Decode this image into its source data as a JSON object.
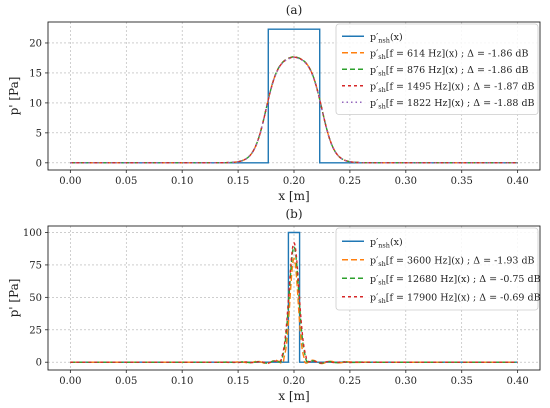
{
  "chart_data": [
    {
      "type": "line",
      "panel_label": "(a)",
      "xlabel": "x [m]",
      "ylabel": "p' [Pa]",
      "xlim": [
        -0.02,
        0.42
      ],
      "ylim": [
        -1.2,
        23.5
      ],
      "xticks": [
        "0.00",
        "0.05",
        "0.10",
        "0.15",
        "0.20",
        "0.25",
        "0.30",
        "0.35",
        "0.40"
      ],
      "yticks": [
        "0",
        "5",
        "10",
        "15",
        "20"
      ],
      "grid": true,
      "legend_position": "top-right",
      "series": [
        {
          "name": "p'nsh(x)",
          "label_base": "p′",
          "label_sub": "nsh",
          "label_rest": "(x)",
          "color": "#1f77b4",
          "dash": "",
          "kind": "rect",
          "x0": 0.177,
          "x1": 0.223,
          "peak": 22.3
        },
        {
          "name": "p'sh[f = 614 Hz](x) ; Δ = -1.86 dB",
          "label_base": "p′",
          "label_sub": "sh",
          "label_rest": "[f = 614 Hz](x) ; Δ = -1.86 dB",
          "color": "#ff7f0e",
          "dash": "6,3",
          "kind": "smooth",
          "center": 0.2,
          "half_width": 0.025,
          "edge_width": 0.0055,
          "peak": 17.9
        },
        {
          "name": "p'sh[f = 876 Hz](x) ; Δ = -1.86 dB",
          "label_base": "p′",
          "label_sub": "sh",
          "label_rest": "[f = 876 Hz](x) ; Δ = -1.86 dB",
          "color": "#2ca02c",
          "dash": "5,3",
          "kind": "smooth",
          "center": 0.2,
          "half_width": 0.025,
          "edge_width": 0.0055,
          "peak": 17.9
        },
        {
          "name": "p'sh[f = 1495 Hz](x) ; Δ = -1.87 dB",
          "label_base": "p′",
          "label_sub": "sh",
          "label_rest": "[f = 1495 Hz](x) ; Δ = -1.87 dB",
          "color": "#d62728",
          "dash": "3,3",
          "kind": "smooth",
          "center": 0.2,
          "half_width": 0.025,
          "edge_width": 0.0055,
          "peak": 17.85
        },
        {
          "name": "p'sh[f = 1822 Hz](x) ; Δ = -1.88 dB",
          "label_base": "p′",
          "label_sub": "sh",
          "label_rest": "[f = 1822 Hz](x) ; Δ = -1.88 dB",
          "color": "#9467bd",
          "dash": "1.5,3",
          "kind": "smooth",
          "center": 0.2,
          "half_width": 0.025,
          "edge_width": 0.0055,
          "peak": 17.8
        }
      ]
    },
    {
      "type": "line",
      "panel_label": "(b)",
      "xlabel": "x [m]",
      "ylabel": "p' [Pa]",
      "xlim": [
        -0.02,
        0.42
      ],
      "ylim": [
        -6,
        105
      ],
      "xticks": [
        "0.00",
        "0.05",
        "0.10",
        "0.15",
        "0.20",
        "0.25",
        "0.30",
        "0.35",
        "0.40"
      ],
      "yticks": [
        "0",
        "25",
        "50",
        "75",
        "100"
      ],
      "grid": true,
      "legend_position": "top-right",
      "series": [
        {
          "name": "p'nsh(x)",
          "label_base": "p′",
          "label_sub": "nsh",
          "label_rest": "(x)",
          "color": "#1f77b4",
          "dash": "",
          "kind": "rect",
          "x0": 0.195,
          "x1": 0.205,
          "peak": 100
        },
        {
          "name": "p'sh[f = 3600 Hz](x) ; Δ = -1.93 dB",
          "label_base": "p′",
          "label_sub": "sh",
          "label_rest": "[f = 3600 Hz](x) ; Δ = -1.93 dB",
          "color": "#ff7f0e",
          "dash": "6,3",
          "kind": "gauss",
          "center": 0.2,
          "sigma": 0.0036,
          "peak": 80,
          "ripple_amp": 4.5,
          "ripple_period": 0.016,
          "ripple_decay": 0.02
        },
        {
          "name": "p'sh[f = 12680 Hz](x) ; Δ = -0.75 dB",
          "label_base": "p′",
          "label_sub": "sh",
          "label_rest": "[f = 12680 Hz](x) ; Δ = -0.75 dB",
          "color": "#2ca02c",
          "dash": "5,3",
          "kind": "gauss",
          "center": 0.2,
          "sigma": 0.0042,
          "peak": 89,
          "ripple_amp": 3,
          "ripple_period": 0.014,
          "ripple_decay": 0.02
        },
        {
          "name": "p'sh[f = 17900 Hz](x) ; Δ = -0.69 dB",
          "label_base": "p′",
          "label_sub": "sh",
          "label_rest": "[f = 17900 Hz](x) ; Δ = -0.69 dB",
          "color": "#d62728",
          "dash": "3,3",
          "kind": "gauss",
          "center": 0.2,
          "sigma": 0.0044,
          "peak": 92,
          "ripple_amp": 2.5,
          "ripple_period": 0.013,
          "ripple_decay": 0.018
        }
      ]
    }
  ]
}
